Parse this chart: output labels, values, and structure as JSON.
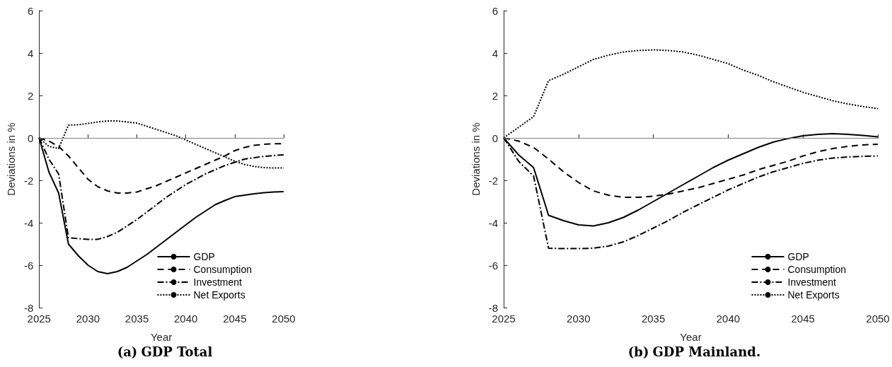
{
  "chart_data": [
    {
      "type": "line",
      "title": "(a) GDP Total",
      "xlabel": "Year",
      "ylabel": "Deviations in %",
      "x": [
        2025,
        2026,
        2027,
        2028,
        2029,
        2030,
        2031,
        2032,
        2033,
        2034,
        2035,
        2036,
        2037,
        2038,
        2039,
        2040,
        2041,
        2042,
        2043,
        2044,
        2045,
        2046,
        2047,
        2048,
        2049,
        2050
      ],
      "series": [
        {
          "name": "GDP",
          "color": "#000000",
          "line_style": "solid",
          "values": [
            0,
            -1.6,
            -2.6,
            -5.0,
            -5.55,
            -6.0,
            -6.3,
            -6.4,
            -6.3,
            -6.1,
            -5.8,
            -5.5,
            -5.15,
            -4.8,
            -4.45,
            -4.1,
            -3.75,
            -3.45,
            -3.15,
            -2.95,
            -2.77,
            -2.7,
            -2.63,
            -2.58,
            -2.55,
            -2.53
          ]
        },
        {
          "name": "Consumption",
          "color": "#000000",
          "line_style": "dashed",
          "values": [
            0,
            -0.15,
            -0.4,
            -0.85,
            -1.4,
            -1.95,
            -2.3,
            -2.5,
            -2.6,
            -2.6,
            -2.55,
            -2.4,
            -2.25,
            -2.05,
            -1.85,
            -1.65,
            -1.45,
            -1.25,
            -1.05,
            -0.85,
            -0.6,
            -0.45,
            -0.35,
            -0.3,
            -0.28,
            -0.27
          ]
        },
        {
          "name": "Investment",
          "color": "#000000",
          "line_style": "dashdot",
          "values": [
            0,
            -1.0,
            -1.7,
            -4.7,
            -4.75,
            -4.78,
            -4.78,
            -4.65,
            -4.45,
            -4.15,
            -3.85,
            -3.5,
            -3.15,
            -2.8,
            -2.5,
            -2.2,
            -1.95,
            -1.7,
            -1.5,
            -1.3,
            -1.15,
            -1.0,
            -0.93,
            -0.87,
            -0.83,
            -0.8
          ]
        },
        {
          "name": "Net Exports",
          "color": "#000000",
          "line_style": "dotted",
          "values": [
            0,
            -0.4,
            -0.5,
            0.6,
            0.62,
            0.68,
            0.75,
            0.8,
            0.8,
            0.75,
            0.7,
            0.55,
            0.4,
            0.25,
            0.1,
            -0.1,
            -0.3,
            -0.5,
            -0.7,
            -0.9,
            -1.1,
            -1.25,
            -1.35,
            -1.4,
            -1.42,
            -1.42
          ]
        }
      ],
      "xlim": [
        2025,
        2050
      ],
      "xticks": [
        2025,
        2030,
        2035,
        2040,
        2045,
        2050
      ],
      "ylim": [
        -8,
        6
      ],
      "yticks": [
        -8,
        -6,
        -4,
        -2,
        0,
        2,
        4,
        6
      ],
      "ref_lines": [
        {
          "axis": "y",
          "value": 0,
          "color": "#808080"
        }
      ],
      "legend": "bottom right",
      "grid": false,
      "marker": "none"
    },
    {
      "type": "line",
      "title": "(b) GDP Mainland.",
      "xlabel": "Year",
      "ylabel": "Deviations in %",
      "x": [
        2025,
        2026,
        2027,
        2028,
        2029,
        2030,
        2031,
        2032,
        2033,
        2034,
        2035,
        2036,
        2037,
        2038,
        2039,
        2040,
        2041,
        2042,
        2043,
        2044,
        2045,
        2046,
        2047,
        2048,
        2049,
        2050
      ],
      "series": [
        {
          "name": "GDP",
          "color": "#000000",
          "line_style": "solid",
          "values": [
            0,
            -0.8,
            -1.4,
            -3.65,
            -3.9,
            -4.1,
            -4.15,
            -4.0,
            -3.75,
            -3.4,
            -3.0,
            -2.6,
            -2.2,
            -1.8,
            -1.4,
            -1.05,
            -0.75,
            -0.45,
            -0.2,
            -0.03,
            0.1,
            0.17,
            0.2,
            0.17,
            0.12,
            0.05
          ]
        },
        {
          "name": "Consumption",
          "color": "#000000",
          "line_style": "dashed",
          "values": [
            0,
            -0.15,
            -0.45,
            -1.0,
            -1.6,
            -2.1,
            -2.5,
            -2.7,
            -2.8,
            -2.8,
            -2.75,
            -2.65,
            -2.5,
            -2.35,
            -2.15,
            -1.95,
            -1.75,
            -1.5,
            -1.3,
            -1.1,
            -0.85,
            -0.65,
            -0.5,
            -0.4,
            -0.33,
            -0.3
          ]
        },
        {
          "name": "Investment",
          "color": "#000000",
          "line_style": "dashdot",
          "values": [
            0,
            -1.1,
            -1.8,
            -5.2,
            -5.22,
            -5.22,
            -5.2,
            -5.1,
            -4.9,
            -4.6,
            -4.25,
            -3.9,
            -3.5,
            -3.15,
            -2.8,
            -2.45,
            -2.15,
            -1.85,
            -1.6,
            -1.4,
            -1.2,
            -1.05,
            -0.95,
            -0.9,
            -0.87,
            -0.85
          ]
        },
        {
          "name": "Net Exports",
          "color": "#000000",
          "line_style": "dotted",
          "values": [
            0,
            0.5,
            1.0,
            2.7,
            3.0,
            3.35,
            3.7,
            3.9,
            4.05,
            4.12,
            4.15,
            4.12,
            4.05,
            3.9,
            3.7,
            3.5,
            3.2,
            2.95,
            2.65,
            2.4,
            2.15,
            1.95,
            1.75,
            1.6,
            1.48,
            1.38
          ]
        }
      ],
      "xlim": [
        2025,
        2050
      ],
      "xticks": [
        2025,
        2030,
        2035,
        2040,
        2045,
        2050
      ],
      "ylim": [
        -8,
        6
      ],
      "yticks": [
        -8,
        -6,
        -4,
        -2,
        0,
        2,
        4,
        6
      ],
      "ref_lines": [
        {
          "axis": "y",
          "value": 0,
          "color": "#808080"
        }
      ],
      "legend": "bottom right",
      "grid": false,
      "marker": "none"
    }
  ]
}
